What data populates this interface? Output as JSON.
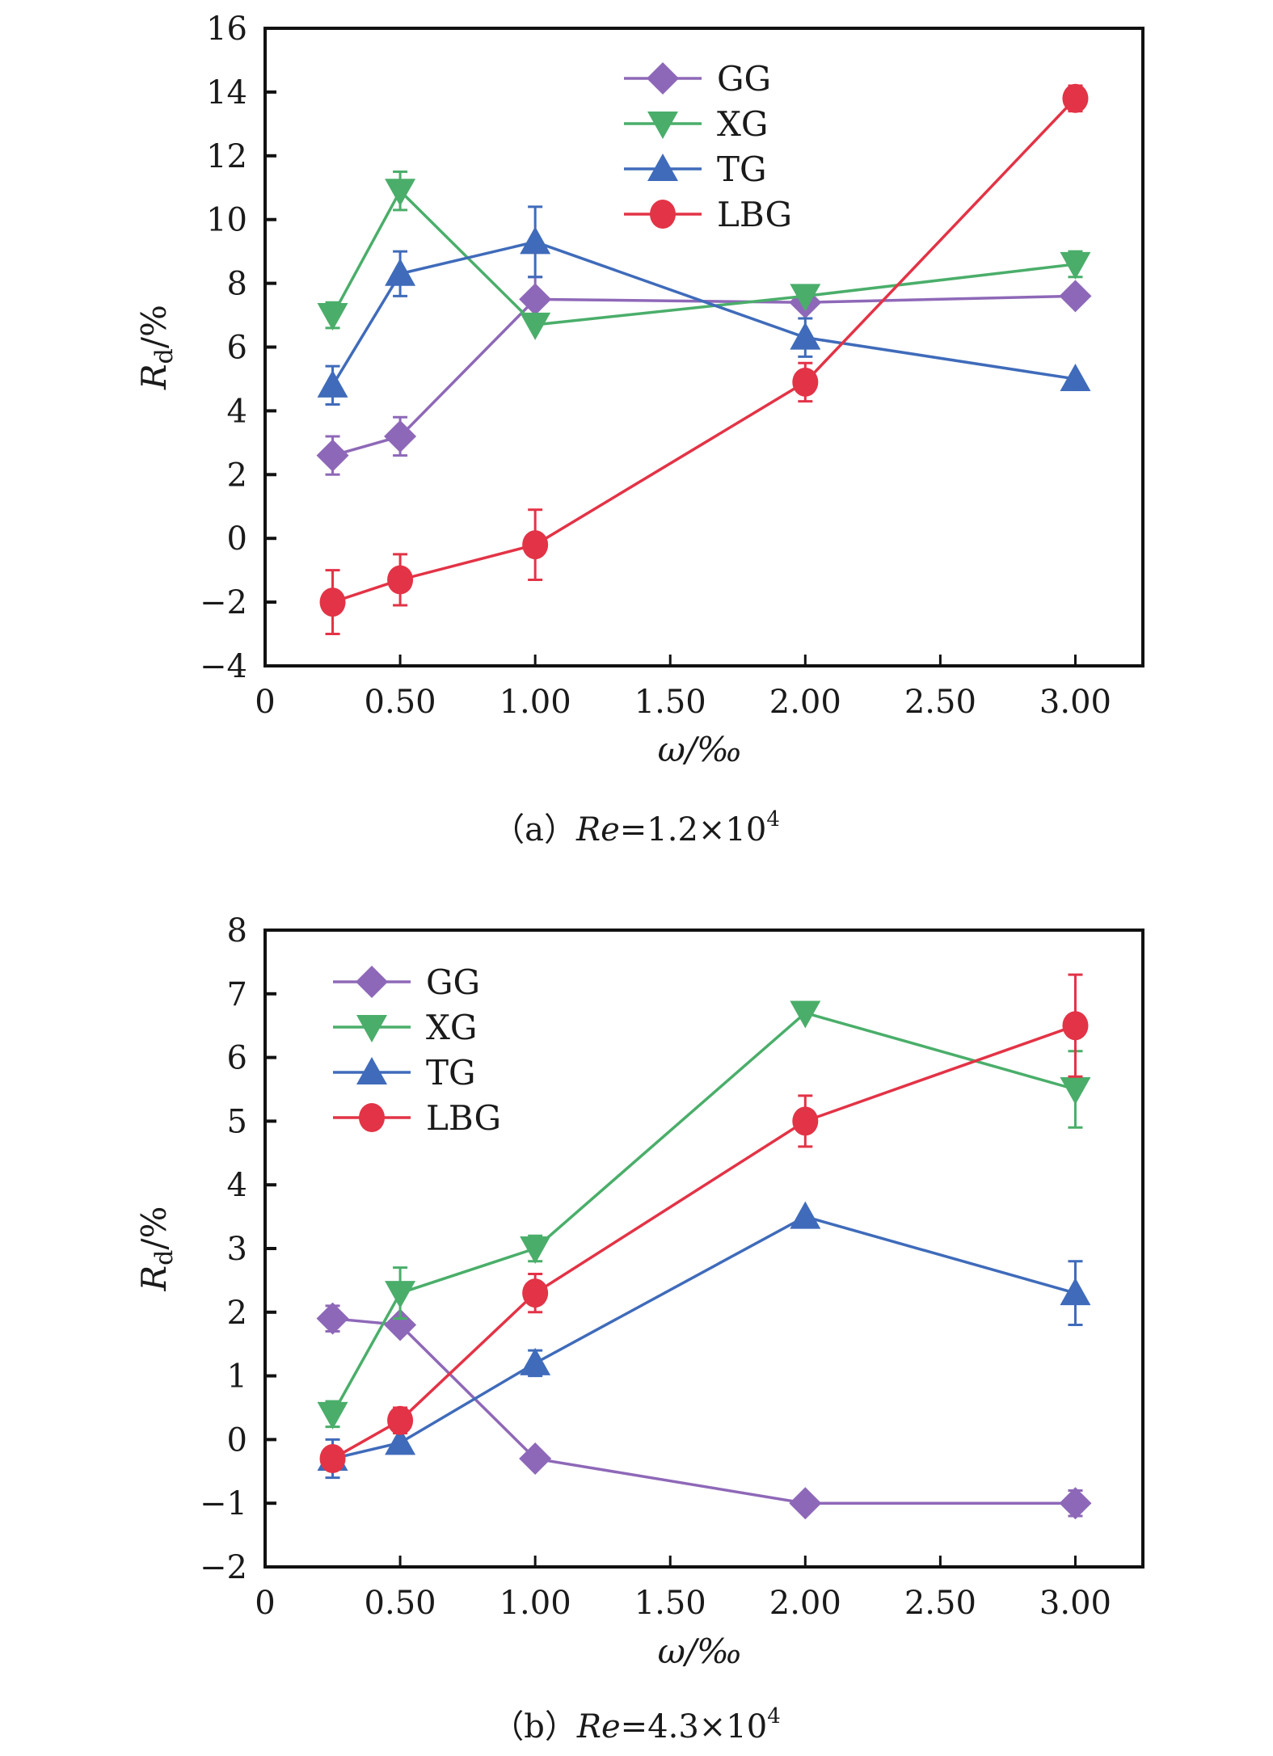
{
  "chart_data": [
    {
      "type": "line",
      "panel": "a",
      "caption": {
        "prefix": "（a）",
        "italic": "Re",
        "rest": "=1.2×10",
        "sup": "4"
      },
      "title": "",
      "xlabel": "ω/‰",
      "ylabel": {
        "main": "R",
        "sub": "d",
        "unit": "/%"
      },
      "xlim": [
        0,
        3.25
      ],
      "ylim": [
        -4,
        16
      ],
      "xticks": [
        0,
        0.5,
        1.0,
        1.5,
        2.0,
        2.5,
        3.0
      ],
      "xtick_labels": [
        "0",
        "0.50",
        "1.00",
        "1.50",
        "2.00",
        "2.50",
        "3.00"
      ],
      "yticks": [
        -4,
        -2,
        0,
        2,
        4,
        6,
        8,
        10,
        12,
        14,
        16
      ],
      "ytick_labels": [
        "−4",
        "−2",
        "0",
        "2",
        "4",
        "6",
        "8",
        "10",
        "12",
        "14",
        "16"
      ],
      "grid": false,
      "legend_position": "top-center",
      "x": [
        0.25,
        0.5,
        1.0,
        2.0,
        3.0
      ],
      "series": [
        {
          "name": "GG",
          "marker": "diamond",
          "color": "#8e68b8",
          "values": [
            2.6,
            3.2,
            7.5,
            7.4,
            7.6
          ],
          "errors": [
            0.6,
            0.6,
            0.7,
            0,
            0
          ]
        },
        {
          "name": "XG",
          "marker": "triangle-down",
          "color": "#4aae6a",
          "values": [
            7.0,
            10.9,
            6.7,
            7.6,
            8.6
          ],
          "errors": [
            0.4,
            0.6,
            0,
            0,
            0.4
          ]
        },
        {
          "name": "TG",
          "marker": "triangle-up",
          "color": "#3f6bba",
          "values": [
            4.8,
            8.3,
            9.3,
            6.3,
            5.0
          ],
          "errors": [
            0.6,
            0.7,
            1.1,
            0.6,
            0
          ]
        },
        {
          "name": "LBG",
          "marker": "circle",
          "color": "#e33346",
          "values": [
            -2.0,
            -1.3,
            -0.2,
            4.9,
            13.8
          ],
          "errors": [
            1.0,
            0.8,
            1.1,
            0.6,
            0.4
          ]
        }
      ]
    },
    {
      "type": "line",
      "panel": "b",
      "caption": {
        "prefix": "（b）",
        "italic": "Re",
        "rest": "=4.3×10",
        "sup": "4"
      },
      "title": "",
      "xlabel": "ω/‰",
      "ylabel": {
        "main": "R",
        "sub": "d",
        "unit": "/%"
      },
      "xlim": [
        0,
        3.25
      ],
      "ylim": [
        -2,
        8
      ],
      "xticks": [
        0,
        0.5,
        1.0,
        1.5,
        2.0,
        2.5,
        3.0
      ],
      "xtick_labels": [
        "0",
        "0.50",
        "1.00",
        "1.50",
        "2.00",
        "2.50",
        "3.00"
      ],
      "yticks": [
        -2,
        -1,
        0,
        1,
        2,
        3,
        4,
        5,
        6,
        7,
        8
      ],
      "ytick_labels": [
        "−2",
        "−1",
        "0",
        "1",
        "2",
        "3",
        "4",
        "5",
        "6",
        "7",
        "8"
      ],
      "grid": false,
      "legend_position": "top-left",
      "x": [
        0.25,
        0.5,
        1.0,
        2.0,
        3.0
      ],
      "series": [
        {
          "name": "GG",
          "marker": "diamond",
          "color": "#8e68b8",
          "values": [
            1.9,
            1.8,
            -0.3,
            -1.0,
            -1.0
          ],
          "errors": [
            0.2,
            0,
            0,
            0,
            0.2
          ]
        },
        {
          "name": "XG",
          "marker": "triangle-down",
          "color": "#4aae6a",
          "values": [
            0.4,
            2.3,
            3.0,
            6.7,
            5.5
          ],
          "errors": [
            0.2,
            0.4,
            0.2,
            0,
            0.6
          ]
        },
        {
          "name": "TG",
          "marker": "triangle-up",
          "color": "#3f6bba",
          "values": [
            -0.3,
            -0.05,
            1.2,
            3.5,
            2.3
          ],
          "errors": [
            0.3,
            0,
            0.2,
            0,
            0.5
          ]
        },
        {
          "name": "LBG",
          "marker": "circle",
          "color": "#e33346",
          "values": [
            -0.3,
            0.3,
            2.3,
            5.0,
            6.5
          ],
          "errors": [
            0,
            0.2,
            0.3,
            0.4,
            0.8
          ]
        }
      ]
    }
  ]
}
